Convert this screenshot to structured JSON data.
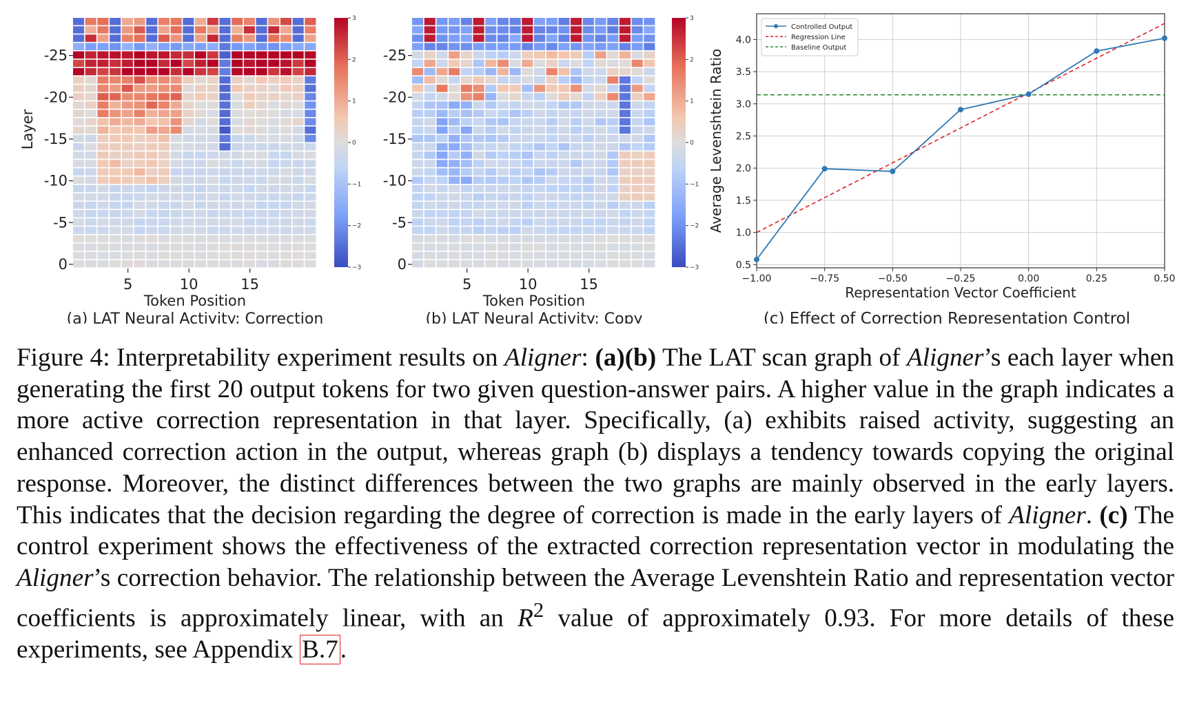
{
  "heatmap_seed": 7,
  "chart_data": [
    {
      "type": "heatmap",
      "panel_caption": "(a) LAT Neural Activity: Correction",
      "xlabel": "Token Position",
      "ylabel": "Layer",
      "x_ticks": [
        5,
        10,
        15
      ],
      "y_ticks": [
        -25,
        -20,
        -15,
        -10,
        -5,
        0
      ],
      "columns": 20,
      "rows": 30,
      "colorbar": {
        "min": -3,
        "max": 3,
        "ticks": [
          3,
          2,
          1,
          0,
          -1,
          -2,
          -3
        ],
        "colormap": "coolwarm"
      },
      "pattern": "correction"
    },
    {
      "type": "heatmap",
      "panel_caption": "(b) LAT Neural Activity: Copy",
      "xlabel": "Token Position",
      "ylabel": "",
      "x_ticks": [
        5,
        10,
        15
      ],
      "y_ticks": [
        -25,
        -20,
        -15,
        -10,
        -5,
        0
      ],
      "columns": 20,
      "rows": 30,
      "colorbar": {
        "min": -3,
        "max": 3,
        "ticks": [
          3,
          2,
          1,
          0,
          -1,
          -2,
          -3
        ],
        "colormap": "coolwarm"
      },
      "pattern": "copy"
    },
    {
      "type": "line",
      "panel_caption": "(c) Effect of Correction Representation Control",
      "xlabel": "Representation Vector Coefficient",
      "ylabel": "Average Levenshtein Ratio",
      "xlim": [
        -1.0,
        0.5
      ],
      "ylim": [
        0.45,
        4.4
      ],
      "x_ticks": [
        -1.0,
        -0.75,
        -0.5,
        -0.25,
        0.0,
        0.25,
        0.5
      ],
      "x_tick_labels": [
        "−1.00",
        "−0.75",
        "−0.50",
        "−0.25",
        "0.00",
        "0.25",
        "0.50"
      ],
      "y_ticks": [
        0.5,
        1.0,
        1.5,
        2.0,
        2.5,
        3.0,
        3.5,
        4.0
      ],
      "y_tick_labels": [
        "0.5",
        "1.0",
        "1.5",
        "2.0",
        "2.5",
        "3.0",
        "3.5",
        "4.0"
      ],
      "grid": true,
      "legend_position": "top-left",
      "series": [
        {
          "name": "Controlled Output",
          "style": "solid-marker",
          "color": "#2f78b4",
          "x": [
            -1.0,
            -0.75,
            -0.5,
            -0.25,
            0.0,
            0.25,
            0.5
          ],
          "y": [
            0.58,
            1.99,
            1.95,
            2.91,
            3.15,
            3.82,
            4.02
          ]
        },
        {
          "name": "Regression Line",
          "style": "dashed",
          "color": "#e02020",
          "x": [
            -1.0,
            0.5
          ],
          "y": [
            1.0,
            4.25
          ]
        },
        {
          "name": "Baseline Output",
          "style": "dashed",
          "color": "#2a8a2a",
          "x": [
            -1.0,
            0.5
          ],
          "y": [
            3.14,
            3.14
          ]
        }
      ]
    }
  ],
  "caption": {
    "s1": "Figure 4: Interpretability experiment results on ",
    "aligner": "Aligner",
    "s2": ": ",
    "ab": "(a)(b)",
    "s3": " The LAT scan graph of ",
    "s4": "’s each layer when generating the first 20 output tokens for two given question-answer pairs. A higher value in the graph indicates a more active correction representation in that layer. Specifically, (a) exhibits raised activity, suggesting an enhanced correction action in the output, whereas graph (b) displays a tendency towards copying the original response. Moreover, the distinct differences between the two graphs are mainly observed in the early layers. This indicates that the decision regarding the degree of correction is made in the early layers of ",
    "s5": ". ",
    "c": "(c)",
    "s6": " The control experiment shows the effectiveness of the extracted correction representation vector in modulating the ",
    "s7": "’s correction behavior. The relationship between the Average Levenshtein Ratio and representation vector coefficients is approximately linear, with an ",
    "r": "R",
    "sup": "2",
    "s8": " value of approximately 0.93. For more details of these experiments, see Appendix ",
    "link": "B.7",
    "s9": "."
  }
}
